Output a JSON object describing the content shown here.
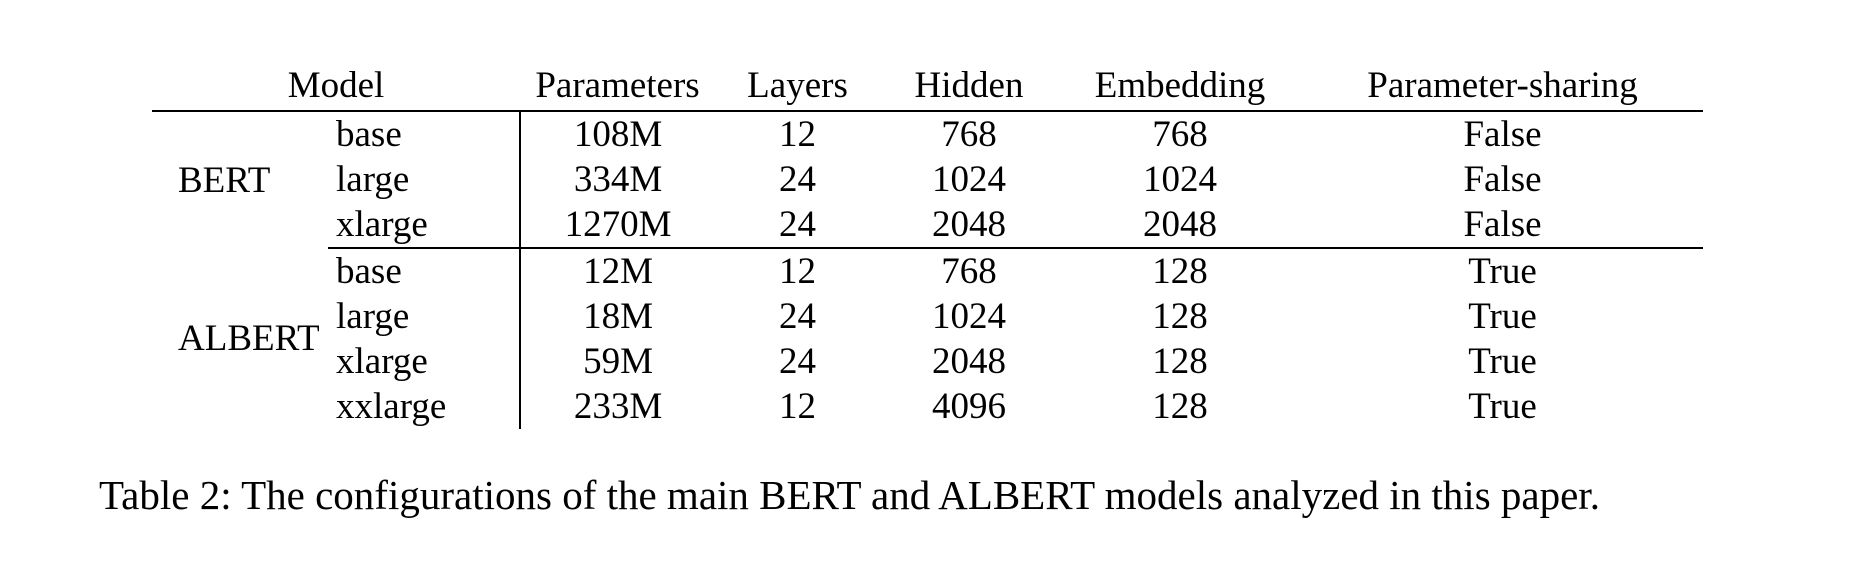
{
  "table": {
    "headers": {
      "model": "Model",
      "parameters": "Parameters",
      "layers": "Layers",
      "hidden": "Hidden",
      "embedding": "Embedding",
      "sharing": "Parameter-sharing"
    },
    "groups": [
      {
        "family": "BERT",
        "rows": [
          {
            "size": "base",
            "parameters": "108M",
            "layers": "12",
            "hidden": "768",
            "embedding": "768",
            "sharing": "False"
          },
          {
            "size": "large",
            "parameters": "334M",
            "layers": "24",
            "hidden": "1024",
            "embedding": "1024",
            "sharing": "False"
          },
          {
            "size": "xlarge",
            "parameters": "1270M",
            "layers": "24",
            "hidden": "2048",
            "embedding": "2048",
            "sharing": "False"
          }
        ]
      },
      {
        "family": "ALBERT",
        "rows": [
          {
            "size": "base",
            "parameters": "12M",
            "layers": "12",
            "hidden": "768",
            "embedding": "128",
            "sharing": "True"
          },
          {
            "size": "large",
            "parameters": "18M",
            "layers": "24",
            "hidden": "1024",
            "embedding": "128",
            "sharing": "True"
          },
          {
            "size": "xlarge",
            "parameters": "59M",
            "layers": "24",
            "hidden": "2048",
            "embedding": "128",
            "sharing": "True"
          },
          {
            "size": "xxlarge",
            "parameters": "233M",
            "layers": "12",
            "hidden": "4096",
            "embedding": "128",
            "sharing": "True"
          }
        ]
      }
    ]
  },
  "caption": "Table 2: The configurations of the main BERT and ALBERT models analyzed in this paper."
}
